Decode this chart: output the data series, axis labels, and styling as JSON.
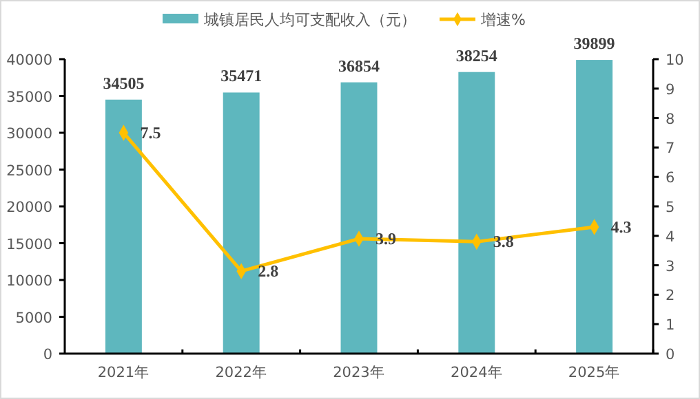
{
  "chart_data": {
    "type": "bar",
    "categories": [
      "2021年",
      "2022年",
      "2023年",
      "2024年",
      "2025年"
    ],
    "series": [
      {
        "name": "城镇居民人均可支配收入（元）",
        "color": "#5eb7be",
        "values": [
          34505,
          35471,
          36854,
          38254,
          39899
        ]
      },
      {
        "name": "增速%",
        "type": "line",
        "axis": "y2",
        "color": "#ffc000",
        "values": [
          7.5,
          2.8,
          3.9,
          3.8,
          4.3
        ]
      }
    ],
    "ylim": [
      0,
      40000
    ],
    "yticks": [
      0,
      5000,
      10000,
      15000,
      20000,
      25000,
      30000,
      35000,
      40000
    ],
    "y2lim": [
      0,
      10
    ],
    "y2ticks": [
      0,
      1,
      2,
      3,
      4,
      5,
      6,
      7,
      8,
      9,
      10
    ],
    "data_labels": true,
    "legend": "top",
    "marker": "diamond",
    "grid": false
  }
}
